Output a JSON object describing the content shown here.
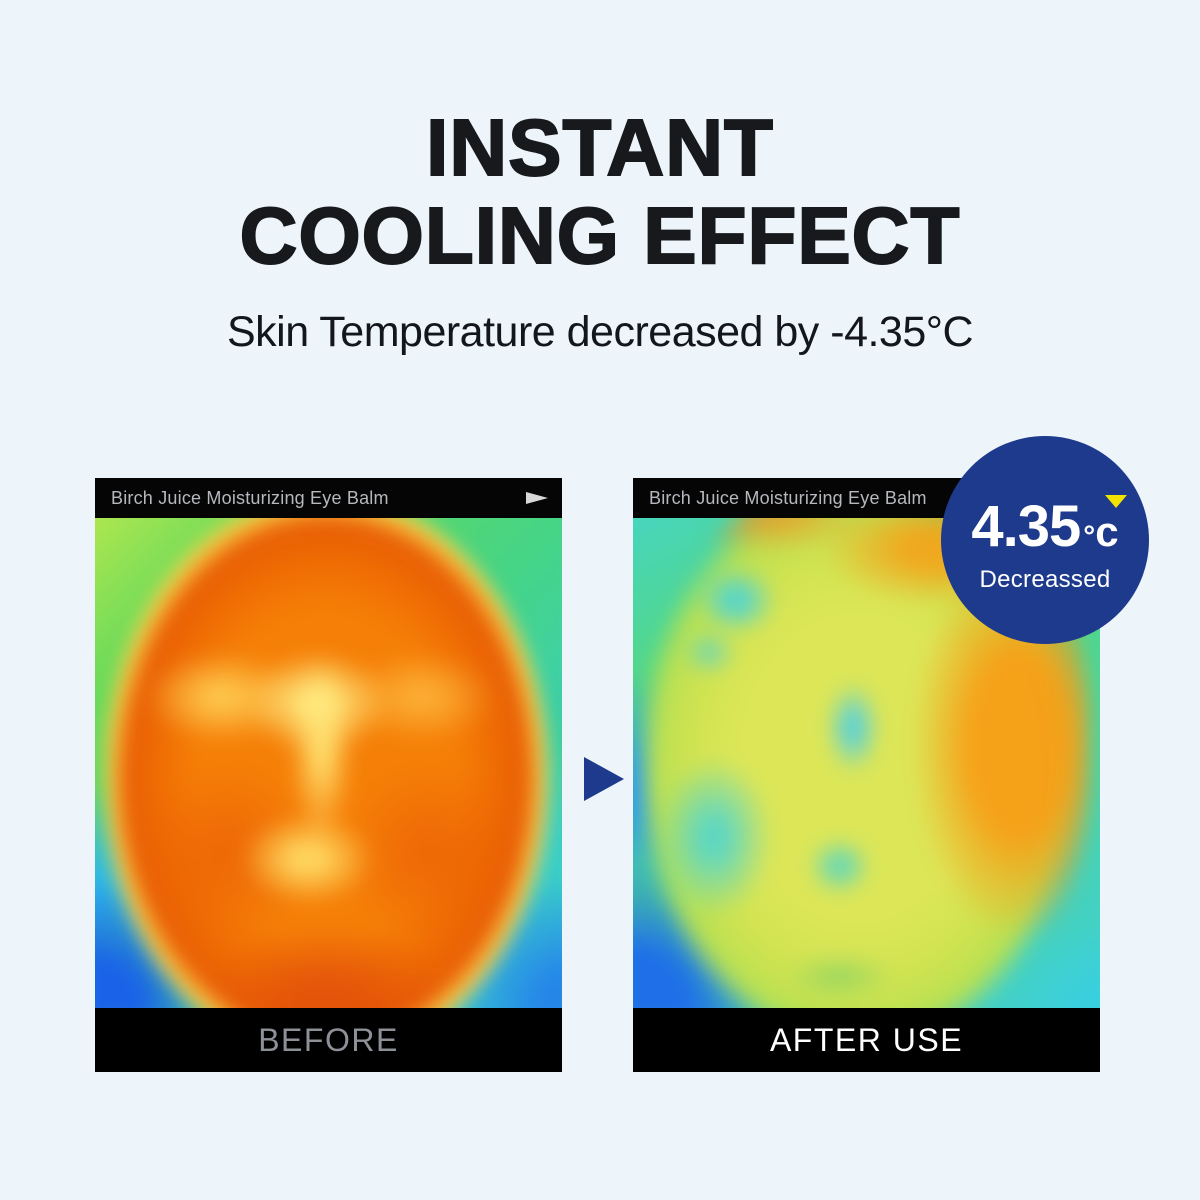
{
  "header": {
    "title_line1": "INSTANT",
    "title_line2": "COOLING EFFECT",
    "subtitle": "Skin Temperature decreased by -4.35°C"
  },
  "cards": {
    "before": {
      "header": "Birch Juice Moisturizing Eye Balm",
      "label": "BEFORE",
      "image_description": "thermal face mostly hot orange-red with yellow highlights, cool green-blue background"
    },
    "after": {
      "header": "Birch Juice Moisturizing Eye Balm",
      "label": "AFTER USE",
      "image_description": "thermal face mostly cool yellow-green with cyan patches, orange on right side, blue background"
    }
  },
  "badge": {
    "value": "4.35",
    "degree": "°",
    "unit": "c",
    "caption": "Decreassed"
  },
  "icons": {
    "play": "play-icon",
    "arrow": "right-arrow-icon",
    "badge_marker": "down-triangle-icon"
  },
  "colors": {
    "page_background": "#edf5fb",
    "heading_text": "#17191c",
    "bar_background": "#000000",
    "bar_title_text": "#b5b8bd",
    "before_label_text": "#8d9096",
    "after_label_text": "#ffffff",
    "arrow": "#1e3a8c",
    "badge_background": "#1e3a8c",
    "badge_text": "#ffffff",
    "badge_marker": "#f2e300"
  }
}
